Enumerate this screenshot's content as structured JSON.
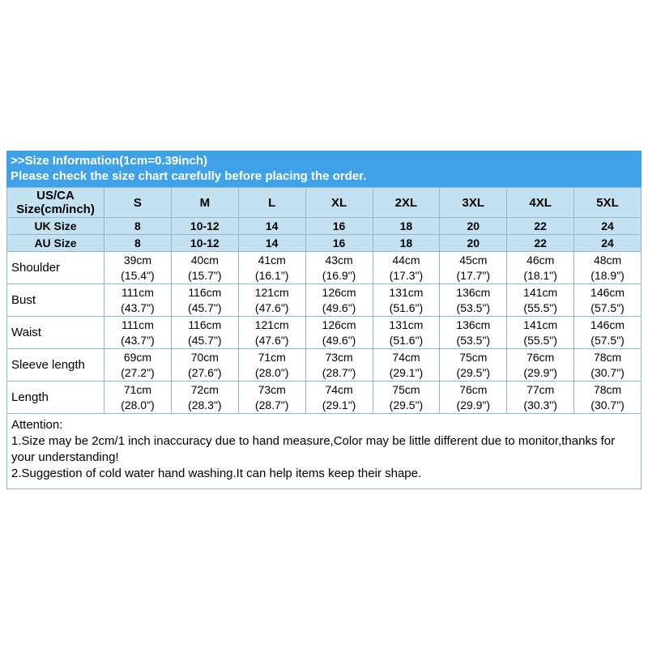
{
  "banner": {
    "line1": ">>Size Information(1cm=0.39inch)",
    "line2": "Please check the size chart carefully before placing the order."
  },
  "table": {
    "corner_line1": "US/CA",
    "corner_line2": "Size(cm/inch)",
    "sizes": [
      "S",
      "M",
      "L",
      "XL",
      "2XL",
      "3XL",
      "4XL",
      "5XL"
    ],
    "uk": {
      "label": "UK Size",
      "values": [
        "8",
        "10-12",
        "14",
        "16",
        "18",
        "20",
        "22",
        "24"
      ]
    },
    "au": {
      "label": "AU Size",
      "values": [
        "8",
        "10-12",
        "14",
        "16",
        "18",
        "20",
        "22",
        "24"
      ]
    },
    "rows": [
      {
        "label": "Shoulder",
        "cm": [
          "39cm",
          "40cm",
          "41cm",
          "43cm",
          "44cm",
          "45cm",
          "46cm",
          "48cm"
        ],
        "inch": [
          "(15.4\")",
          "(15.7\")",
          "(16.1\")",
          "(16.9\")",
          "(17.3\")",
          "(17.7\")",
          "(18.1\")",
          "(18.9\")"
        ]
      },
      {
        "label": "Bust",
        "cm": [
          "111cm",
          "116cm",
          "121cm",
          "126cm",
          "131cm",
          "136cm",
          "141cm",
          "146cm"
        ],
        "inch": [
          "(43.7\")",
          "(45.7\")",
          "(47.6\")",
          "(49.6\")",
          "(51.6\")",
          "(53.5\")",
          "(55.5\")",
          "(57.5\")"
        ]
      },
      {
        "label": "Waist",
        "cm": [
          "111cm",
          "116cm",
          "121cm",
          "126cm",
          "131cm",
          "136cm",
          "141cm",
          "146cm"
        ],
        "inch": [
          "(43.7\")",
          "(45.7\")",
          "(47.6\")",
          "(49.6\")",
          "(51.6\")",
          "(53.5\")",
          "(55.5\")",
          "(57.5\")"
        ]
      },
      {
        "label": "Sleeve length",
        "cm": [
          "69cm",
          "70cm",
          "71cm",
          "73cm",
          "74cm",
          "75cm",
          "76cm",
          "78cm"
        ],
        "inch": [
          "(27.2\")",
          "(27.6\")",
          "(28.0\")",
          "(28.7\")",
          "(29.1\")",
          "(29.5\")",
          "(29.9\")",
          "(30.7\")"
        ]
      },
      {
        "label": "Length",
        "cm": [
          "71cm",
          "72cm",
          "73cm",
          "74cm",
          "75cm",
          "76cm",
          "77cm",
          "78cm"
        ],
        "inch": [
          "(28.0\")",
          "(28.3\")",
          "(28.7\")",
          "(29.1\")",
          "(29.5\")",
          "(29.9\")",
          "(30.3\")",
          "(30.7\")"
        ]
      }
    ]
  },
  "attention": {
    "title": "Attention:",
    "note1": "1.Size may be 2cm/1 inch inaccuracy due to hand measure,Color may be little different due to monitor,thanks for your understanding!",
    "note2": "2.Suggestion of cold water hand washing.It can help items keep their shape."
  },
  "colors": {
    "banner_bg": "#3FA2E9",
    "header_bg": "#C4E1F2",
    "border": "#8FB8D0"
  }
}
